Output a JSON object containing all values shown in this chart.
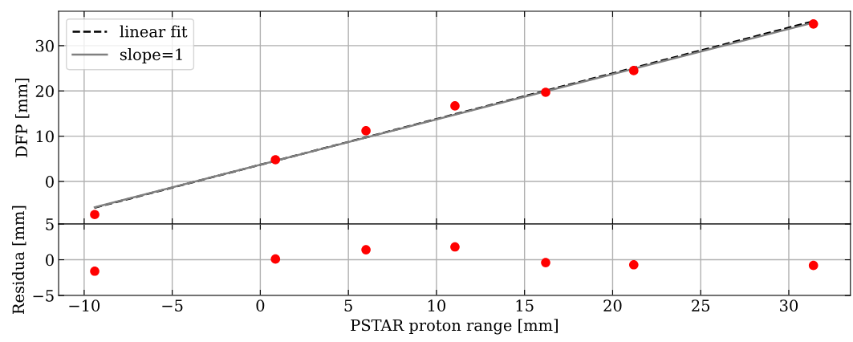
{
  "chart_data": [
    {
      "type": "scatter",
      "ylabel": "DFP [mm]",
      "xlim": [
        -11.45,
        33.5
      ],
      "xticks": [
        {
          "value": -10,
          "label": null
        },
        {
          "value": -5,
          "label": null
        },
        {
          "value": 0,
          "label": null
        },
        {
          "value": 5,
          "label": null
        },
        {
          "value": 10,
          "label": null
        },
        {
          "value": 15,
          "label": null
        },
        {
          "value": 20,
          "label": null
        },
        {
          "value": 25,
          "label": null
        },
        {
          "value": 30,
          "label": null
        }
      ],
      "ylim": [
        -9.4,
        37.6
      ],
      "yticks": [
        0,
        10,
        20,
        30
      ],
      "tick_labels": "y",
      "grid": true,
      "legend": "top left",
      "series": [
        {
          "color": "#ff0000",
          "marker": "circle",
          "x": [
            -9.4,
            0.86,
            6.0,
            11.05,
            16.2,
            21.2,
            31.4
          ],
          "values": [
            -7.3,
            4.8,
            11.2,
            16.7,
            19.7,
            24.5,
            34.8
          ]
        },
        {
          "type": "line",
          "name": "linear fit",
          "color": "#000000",
          "line_style": "dashed",
          "marker": "none",
          "x": [
            -9.4,
            31.4
          ],
          "values": [
            -5.8,
            35.4
          ]
        },
        {
          "type": "line",
          "name": "slope=1",
          "color": "#808080",
          "line_style": "solid",
          "marker": "none",
          "x": [
            -9.4,
            31.4
          ],
          "values": [
            -5.7,
            35.1
          ]
        }
      ]
    },
    {
      "type": "scatter",
      "xlabel": "PSTAR proton range [mm]",
      "ylabel": "Residua [mm]",
      "xlim": [
        -11.45,
        33.5
      ],
      "xticks": [
        {
          "value": -10,
          "label": "−10"
        },
        {
          "value": -5,
          "label": "−5"
        },
        0,
        5,
        10,
        15,
        20,
        25,
        30
      ],
      "ylim": [
        -5,
        5
      ],
      "yticks": [
        {
          "value": -5,
          "label": "−5"
        },
        0,
        5
      ],
      "grid": true,
      "series": [
        {
          "color": "#ff0000",
          "marker": "circle",
          "x": [
            -9.4,
            0.86,
            6.0,
            11.05,
            16.2,
            21.2,
            31.4
          ],
          "values": [
            -1.6,
            0.1,
            1.4,
            1.8,
            -0.4,
            -0.7,
            -0.8
          ]
        }
      ]
    }
  ]
}
